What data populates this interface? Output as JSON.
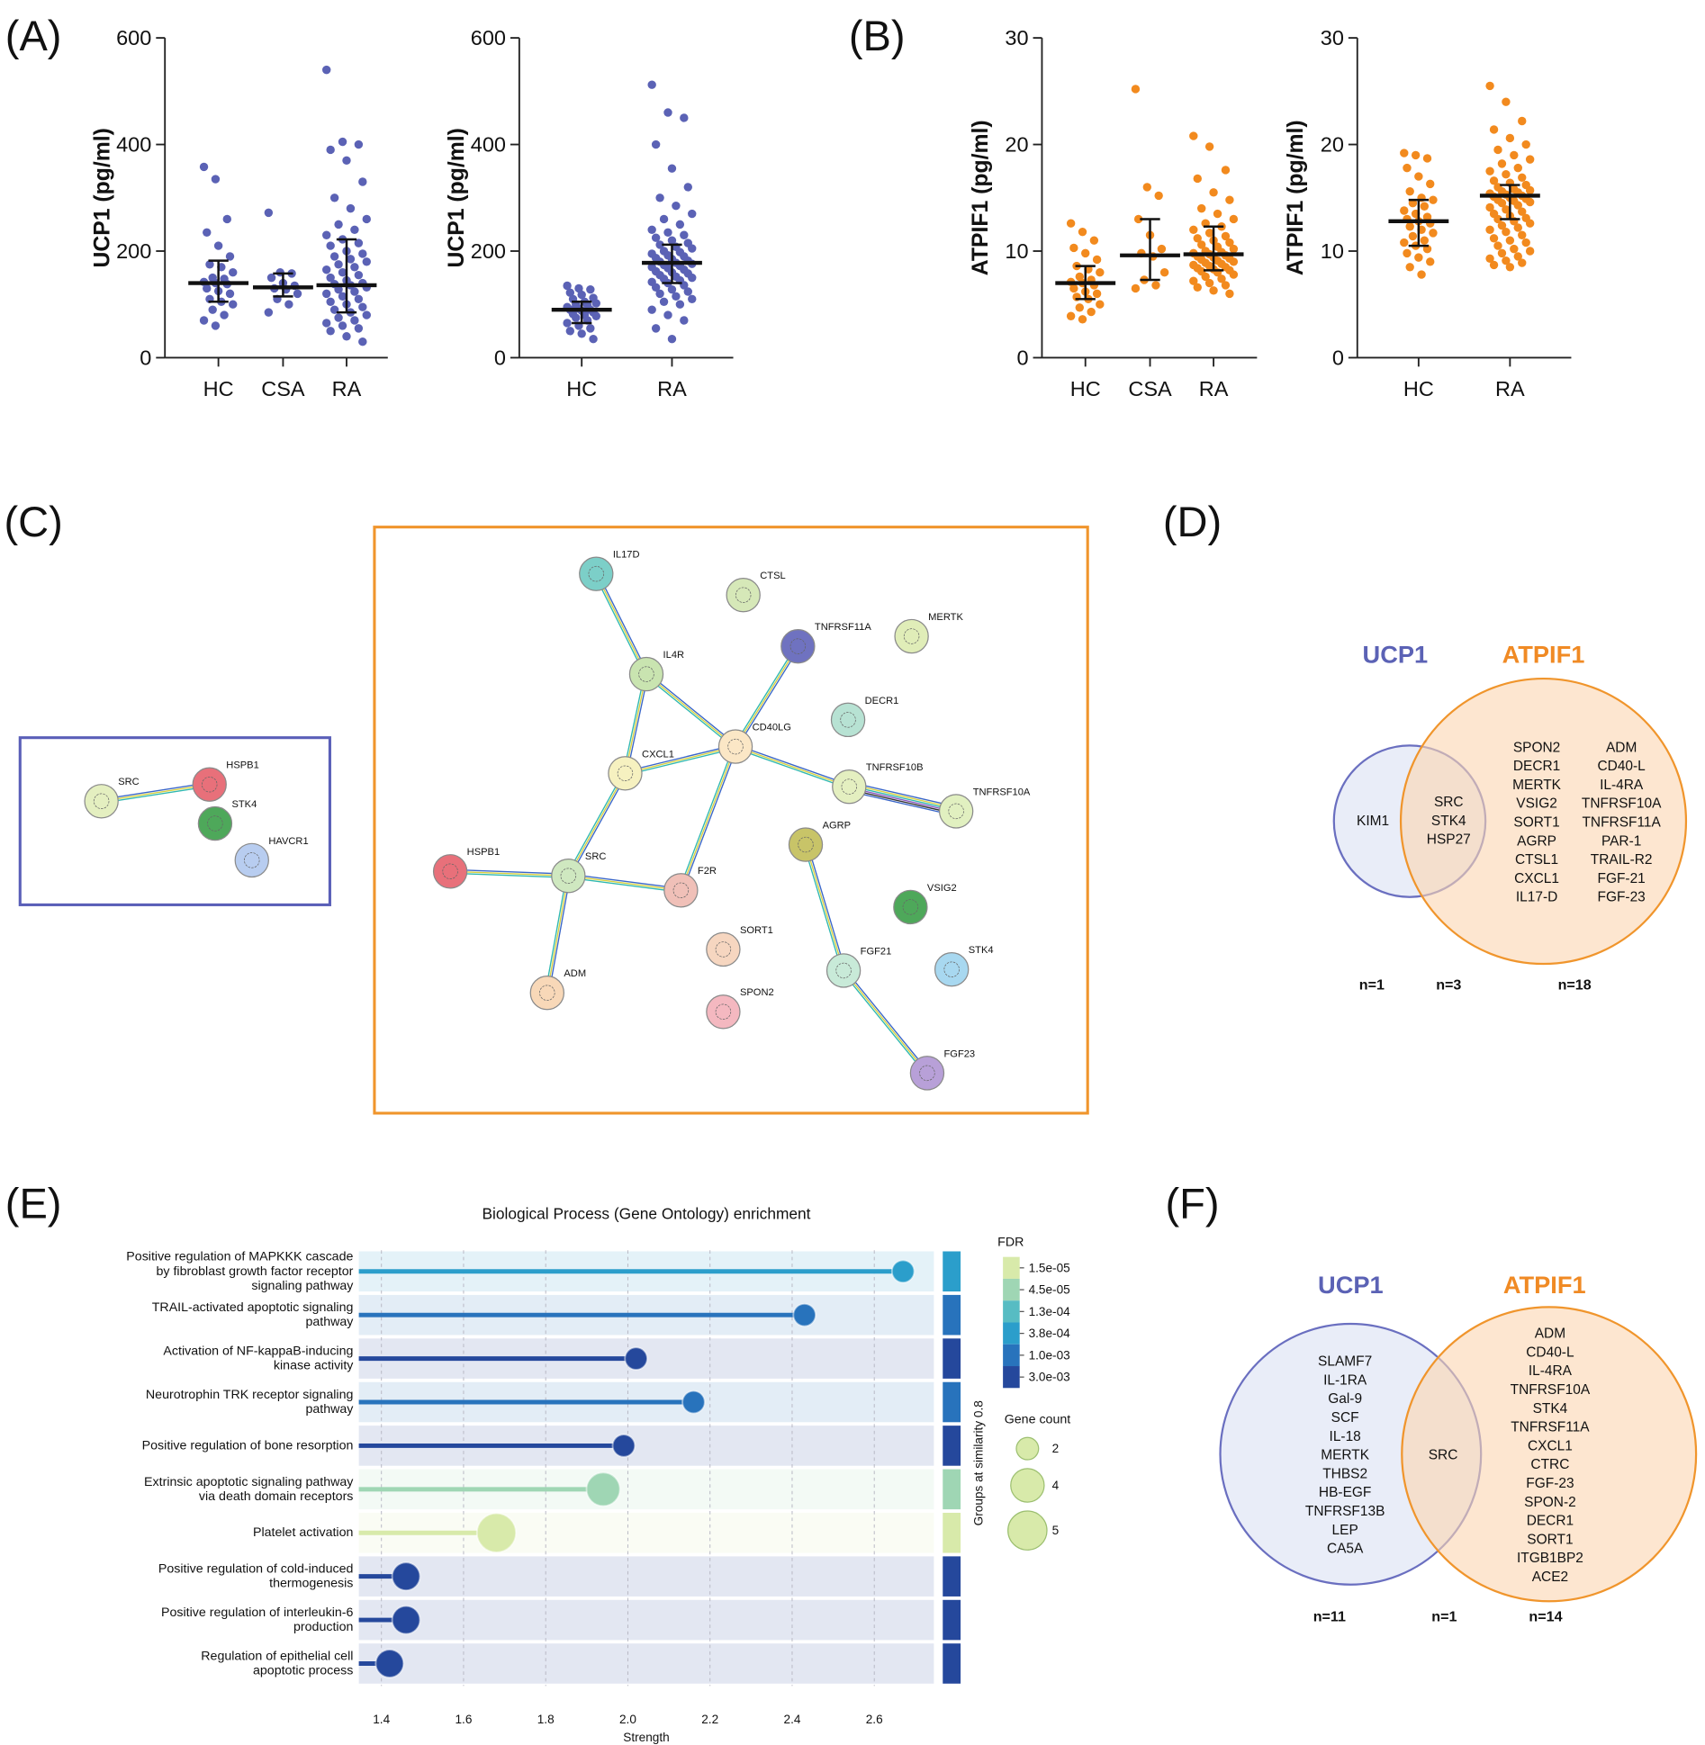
{
  "panel_labels": [
    "(A)",
    "(B)",
    "(C)",
    "(D)",
    "(E)",
    "(F)"
  ],
  "chart_data": [
    {
      "type": "strip",
      "ylabel": "UCP1 (pg/ml)",
      "categories": [
        "HC",
        "CSA",
        "RA"
      ],
      "color": "#5b62b5",
      "ylim": [
        0,
        600
      ],
      "yticks": [
        0,
        200,
        400,
        600
      ],
      "values": [
        [
          358,
          335,
          260,
          235,
          210,
          190,
          175,
          170,
          160,
          150,
          148,
          142,
          140,
          138,
          130,
          125,
          120,
          110,
          105,
          100,
          90,
          80,
          70,
          60
        ],
        [
          272,
          160,
          158,
          150,
          140,
          135,
          130,
          128,
          120,
          110,
          100,
          85
        ],
        [
          540,
          405,
          400,
          390,
          370,
          330,
          300,
          280,
          260,
          250,
          240,
          230,
          222,
          215,
          210,
          200,
          195,
          190,
          185,
          180,
          175,
          170,
          165,
          160,
          155,
          150,
          145,
          140,
          138,
          136,
          132,
          128,
          124,
          120,
          115,
          110,
          105,
          100,
          95,
          90,
          85,
          80,
          75,
          70,
          65,
          60,
          55,
          50,
          40,
          30
        ]
      ],
      "median": [
        140,
        132,
        136
      ],
      "q1": [
        105,
        115,
        85
      ],
      "q3": [
        182,
        158,
        222
      ]
    },
    {
      "type": "strip",
      "ylabel": "UCP1 (pg/ml)",
      "categories": [
        "HC",
        "RA"
      ],
      "color": "#5b62b5",
      "ylim": [
        0,
        600
      ],
      "yticks": [
        0,
        200,
        400,
        600
      ],
      "values": [
        [
          135,
          130,
          128,
          122,
          118,
          112,
          110,
          105,
          102,
          100,
          98,
          95,
          92,
          90,
          90,
          88,
          85,
          82,
          80,
          78,
          75,
          70,
          65,
          60,
          55,
          50,
          45,
          35
        ],
        [
          512,
          460,
          450,
          400,
          355,
          320,
          300,
          285,
          270,
          260,
          250,
          240,
          235,
          230,
          225,
          220,
          215,
          212,
          208,
          205,
          200,
          198,
          195,
          192,
          190,
          187,
          185,
          182,
          180,
          178,
          176,
          174,
          172,
          170,
          168,
          165,
          162,
          160,
          158,
          155,
          152,
          150,
          148,
          145,
          142,
          140,
          136,
          132,
          128,
          124,
          120,
          115,
          110,
          105,
          100,
          90,
          80,
          70,
          55,
          35
        ]
      ],
      "median": [
        90,
        178
      ],
      "q1": [
        65,
        140
      ],
      "q3": [
        105,
        212
      ]
    },
    {
      "type": "strip",
      "ylabel": "ATPIF1 (pg/ml)",
      "categories": [
        "HC",
        "CSA",
        "RA"
      ],
      "color": "#f28a1e",
      "ylim": [
        0,
        30
      ],
      "yticks": [
        0,
        10,
        20,
        30
      ],
      "values": [
        [
          12.6,
          11.8,
          11.0,
          10.3,
          9.8,
          9.2,
          8.6,
          8.3,
          8.0,
          7.6,
          7.3,
          7.1,
          7.0,
          6.8,
          6.5,
          6.2,
          6.0,
          5.7,
          5.5,
          5.0,
          4.7,
          4.3,
          3.9,
          3.6
        ],
        [
          25.2,
          16.0,
          15.2,
          13.0,
          11.5,
          10.2,
          9.8,
          9.5,
          8.0,
          7.3,
          6.8,
          6.5
        ],
        [
          20.8,
          19.8,
          17.6,
          16.8,
          15.5,
          14.8,
          14.0,
          13.5,
          13.0,
          12.6,
          12.3,
          12.0,
          11.7,
          11.4,
          11.2,
          11.0,
          10.8,
          10.6,
          10.4,
          10.2,
          10.0,
          9.9,
          9.8,
          9.7,
          9.6,
          9.5,
          9.4,
          9.3,
          9.2,
          9.1,
          9.0,
          8.9,
          8.8,
          8.7,
          8.6,
          8.5,
          8.4,
          8.3,
          8.2,
          8.1,
          8.0,
          7.8,
          7.6,
          7.4,
          7.2,
          7.0,
          6.8,
          6.6,
          6.3,
          6.0
        ]
      ],
      "median": [
        7.0,
        9.6,
        9.7
      ],
      "q1": [
        5.5,
        7.3,
        8.2
      ],
      "q3": [
        8.6,
        13.0,
        12.3
      ]
    },
    {
      "type": "strip",
      "ylabel": "ATPIF1 (pg/ml)",
      "categories": [
        "HC",
        "RA"
      ],
      "color": "#f28a1e",
      "ylim": [
        0,
        30
      ],
      "yticks": [
        0,
        10,
        20,
        30
      ],
      "values": [
        [
          19.2,
          19.0,
          18.7,
          17.8,
          17.0,
          16.3,
          15.6,
          15.0,
          14.8,
          14.5,
          14.2,
          13.8,
          13.5,
          13.2,
          13.0,
          12.8,
          12.6,
          12.3,
          12.0,
          11.7,
          11.4,
          11.0,
          10.8,
          10.5,
          10.2,
          9.8,
          9.4,
          9.0,
          8.5,
          7.8
        ],
        [
          25.5,
          24.0,
          22.2,
          21.4,
          20.6,
          20.0,
          19.5,
          19.0,
          18.6,
          18.2,
          17.8,
          17.5,
          17.2,
          16.9,
          16.6,
          16.4,
          16.2,
          16.0,
          15.8,
          15.7,
          15.6,
          15.5,
          15.4,
          15.3,
          15.2,
          15.1,
          15.0,
          14.9,
          14.8,
          14.7,
          14.6,
          14.5,
          14.3,
          14.1,
          13.9,
          13.7,
          13.5,
          13.3,
          13.1,
          13.0,
          12.8,
          12.6,
          12.4,
          12.2,
          12.0,
          11.8,
          11.5,
          11.2,
          11.0,
          10.8,
          10.5,
          10.2,
          10.0,
          9.8,
          9.5,
          9.3,
          9.1,
          8.9,
          8.7,
          8.5
        ]
      ],
      "median": [
        12.8,
        15.2
      ],
      "q1": [
        10.5,
        13.0
      ],
      "q3": [
        14.8,
        16.2
      ]
    },
    {
      "type": "lollipop",
      "title": "Biological Process (Gene Ontology) enrichment",
      "xlabel": "Strength",
      "side_label": "Groups at similarity 0.8",
      "categories": [
        [
          "Positive regulation of MAPKKK cascade",
          "by fibroblast growth factor receptor",
          "signaling pathway"
        ],
        [
          "TRAIL-activated apoptotic signaling",
          "pathway"
        ],
        [
          "Activation of NF-kappaB-inducing",
          "kinase activity"
        ],
        [
          "Neurotrophin TRK receptor signaling",
          "pathway"
        ],
        [
          "Positive regulation of bone resorption"
        ],
        [
          "Extrinsic apoptotic signaling pathway",
          "via death domain receptors"
        ],
        [
          "Platelet activation"
        ],
        [
          "Positive regulation of cold-induced",
          "thermogenesis"
        ],
        [
          "Positive regulation of interleukin-6",
          "production"
        ],
        [
          "Regulation of epithelial cell",
          "apoptotic process"
        ]
      ],
      "values": [
        2.67,
        2.43,
        2.02,
        2.16,
        1.99,
        1.94,
        1.68,
        1.46,
        1.46,
        1.42
      ],
      "fdr": [
        0.00038,
        0.001,
        0.003,
        0.001,
        0.003,
        4.5e-05,
        1.5e-05,
        0.003,
        0.003,
        0.003
      ],
      "gene_count": [
        2,
        2,
        2,
        2,
        2,
        4,
        5,
        3,
        3,
        3
      ],
      "xlim": [
        1.345,
        2.745
      ],
      "xticks": [
        1.4,
        1.6,
        1.8,
        {
          "value": 2,
          "label": "2.0"
        },
        2.2,
        2.4,
        2.6
      ],
      "fdr_title": "FDR",
      "fdr_legend": [
        {
          "value": 1.5e-05,
          "label": "1.5e-05",
          "color": "#d8eaaa"
        },
        {
          "value": 4.5e-05,
          "label": "4.5e-05",
          "color": "#9fd6b4"
        },
        {
          "value": 0.00013,
          "label": "1.3e-04",
          "color": "#57bcc3"
        },
        {
          "value": 0.00038,
          "label": "3.8e-04",
          "color": "#2b9ecb"
        },
        {
          "value": 0.001,
          "label": "1.0e-03",
          "color": "#2873bc"
        },
        {
          "value": 0.003,
          "label": "3.0e-03",
          "color": "#25489c"
        }
      ],
      "size_title": "Gene count",
      "size_legend": [
        2,
        4,
        5
      ]
    }
  ],
  "network_small": {
    "nodes": [
      "SRC",
      "HSPB1",
      "STK4",
      "HAVCR1"
    ]
  },
  "network_large": {
    "nodes": [
      "IL17D",
      "CTSL",
      "TNFRSF11A",
      "MERTK",
      "IL4R",
      "DECR1",
      "CD40LG",
      "CXCL1",
      "TNFRSF10B",
      "TNFRSF10A",
      "AGRP",
      "HSPB1",
      "SRC",
      "F2R",
      "VSIG2",
      "SORT1",
      "FGF21",
      "STK4",
      "ADM",
      "SPON2",
      "FGF23"
    ]
  },
  "venn_d": {
    "titles": [
      "UCP1",
      "ATPIF1"
    ],
    "left_columns": [
      [
        "KIM1"
      ]
    ],
    "both": [
      "SRC",
      "STK4",
      "HSP27"
    ],
    "right_columns": [
      [
        "SPON2",
        "DECR1",
        "MERTK",
        "VSIG2",
        "SORT1",
        "AGRP",
        "CTSL1",
        "CXCL1",
        "IL17-D"
      ],
      [
        "ADM",
        "CD40-L",
        "IL-4RA",
        "TNFRSF10A",
        "TNFRSF11A",
        "PAR-1",
        "TRAIL-R2",
        "FGF-21",
        "FGF-23"
      ]
    ],
    "counts": [
      "n=1",
      "n=3",
      "n=18"
    ]
  },
  "venn_f": {
    "titles": [
      "UCP1",
      "ATPIF1"
    ],
    "left_columns": [
      [
        "SLAMF7",
        "IL-1RA",
        "Gal-9",
        "SCF",
        "IL-18",
        "MERTK",
        "THBS2",
        "HB-EGF",
        "TNFRSF13B",
        "LEP",
        "CA5A"
      ]
    ],
    "both": [
      "SRC"
    ],
    "right_columns": [
      [
        "ADM",
        "CD40-L",
        "IL-4RA",
        "TNFRSF10A",
        "STK4",
        "TNFRSF11A",
        "CXCL1",
        "CTRC",
        "FGF-23",
        "SPON-2",
        "DECR1",
        "SORT1",
        "ITGB1BP2",
        "ACE2"
      ]
    ],
    "counts": [
      "n=11",
      "n=1",
      "n=14"
    ]
  }
}
